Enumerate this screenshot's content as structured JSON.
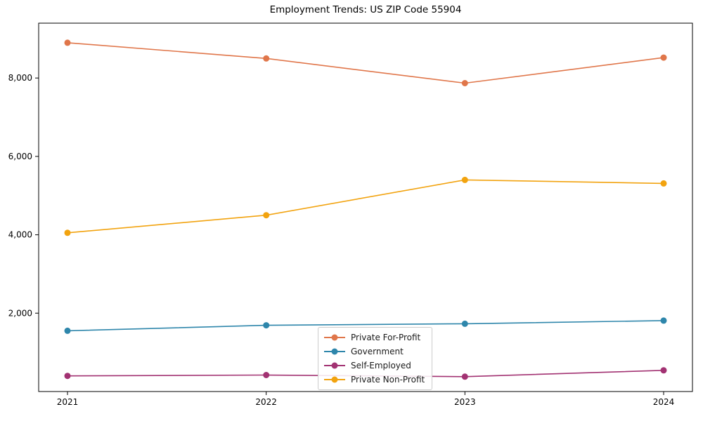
{
  "figure": {
    "background": "#ffffff",
    "axis_color": "#000000",
    "legend_border_color": "#cccccc"
  },
  "chart_data": {
    "type": "line",
    "title": "Employment Trends: US ZIP Code 55904",
    "xlabel": "",
    "ylabel": "",
    "grid": false,
    "legend_position": "inside-bottom-center",
    "x": [
      2021,
      2022,
      2023,
      2024
    ],
    "xtick_labels": [
      "2021",
      "2022",
      "2023",
      "2024"
    ],
    "ylim": [
      0,
      9400
    ],
    "yticks": [
      {
        "value": 2000,
        "label": "2,000"
      },
      {
        "value": 4000,
        "label": "4,000"
      },
      {
        "value": 6000,
        "label": "6,000"
      },
      {
        "value": 8000,
        "label": "8,000"
      }
    ],
    "series": [
      {
        "name": "Private For-Profit",
        "color": "#E0764A",
        "values": [
          8900,
          8500,
          7870,
          8520
        ]
      },
      {
        "name": "Government",
        "color": "#2E86AB",
        "values": [
          1550,
          1690,
          1730,
          1810
        ]
      },
      {
        "name": "Self-Employed",
        "color": "#A23272",
        "values": [
          400,
          420,
          380,
          540
        ]
      },
      {
        "name": "Private Non-Profit",
        "color": "#F2A30F",
        "values": [
          4050,
          4500,
          5400,
          5310
        ]
      }
    ]
  }
}
